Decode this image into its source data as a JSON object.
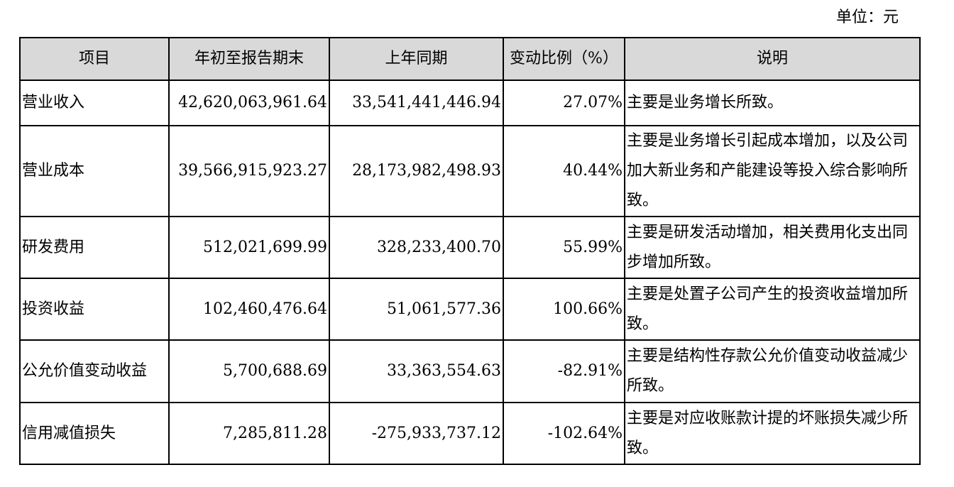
{
  "unit_label": "单位：元",
  "table": {
    "headers": [
      "项目",
      "年初至报告期末",
      "上年同期",
      "变动比例（%）",
      "说明"
    ],
    "rows": [
      {
        "item": "营业收入",
        "current": "42,620,063,961.64",
        "previous": "33,541,441,446.94",
        "change": "27.07%",
        "note": "主要是业务增长所致。"
      },
      {
        "item": "营业成本",
        "current": "39,566,915,923.27",
        "previous": "28,173,982,498.93",
        "change": "40.44%",
        "note": "主要是业务增长引起成本增加，以及公司加大新业务和产能建设等投入综合影响所致。"
      },
      {
        "item": "研发费用",
        "current": "512,021,699.99",
        "previous": "328,233,400.70",
        "change": "55.99%",
        "note": "主要是研发活动增加，相关费用化支出同步增加所致。"
      },
      {
        "item": "投资收益",
        "current": "102,460,476.64",
        "previous": "51,061,577.36",
        "change": "100.66%",
        "note": "主要是处置子公司产生的投资收益增加所致。"
      },
      {
        "item": "公允价值变动收益",
        "current": "5,700,688.69",
        "previous": "33,363,554.63",
        "change": "-82.91%",
        "note": "主要是结构性存款公允价值变动收益减少所致。"
      },
      {
        "item": "信用减值损失",
        "current": "7,285,811.28",
        "previous": "-275,933,737.12",
        "change": "-102.64%",
        "note": "主要是对应收账款计提的坏账损失减少所致。"
      }
    ]
  }
}
